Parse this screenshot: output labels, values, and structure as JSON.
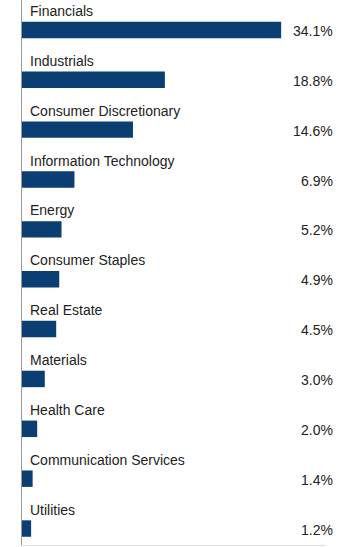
{
  "chart_data": {
    "type": "bar",
    "orientation": "horizontal",
    "categories": [
      "Financials",
      "Industrials",
      "Consumer Discretionary",
      "Information Technology",
      "Energy",
      "Consumer Staples",
      "Real Estate",
      "Materials",
      "Health Care",
      "Communication Services",
      "Utilities"
    ],
    "values": [
      34.1,
      18.8,
      14.6,
      6.9,
      5.2,
      4.9,
      4.5,
      3.0,
      2.0,
      1.4,
      1.2
    ],
    "value_labels": [
      "34.1%",
      "18.8%",
      "14.6%",
      "6.9%",
      "5.2%",
      "4.9%",
      "4.5%",
      "3.0%",
      "2.0%",
      "1.4%",
      "1.2%"
    ],
    "data_labels": true,
    "tick_labels": false,
    "color": "#0b3e73",
    "xlim": [
      0,
      40
    ],
    "grid": false
  }
}
